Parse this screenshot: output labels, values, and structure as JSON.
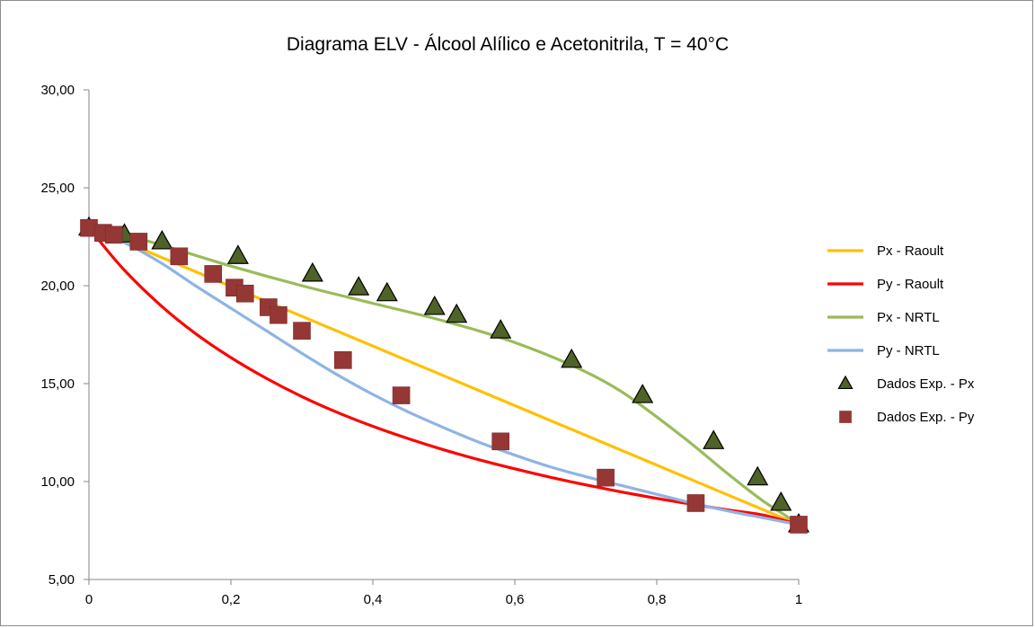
{
  "chart_data": {
    "type": "line",
    "title": "Diagrama ELV - Álcool Alílico e Acetonitrila, T = 40°C",
    "xlabel": "",
    "ylabel": "",
    "xlim": [
      0,
      1
    ],
    "ylim": [
      5,
      30
    ],
    "x_ticks": [
      0,
      0.2,
      0.4,
      0.6,
      0.8,
      1
    ],
    "x_tick_labels": [
      "0",
      "0,2",
      "0,4",
      "0,6",
      "0,8",
      "1"
    ],
    "y_ticks": [
      5,
      10,
      15,
      20,
      25,
      30
    ],
    "y_tick_labels": [
      "5,00",
      "10,00",
      "15,00",
      "20,00",
      "25,00",
      "30,00"
    ],
    "grid": false,
    "legend_position": "right",
    "series": [
      {
        "name": "Px - Raoult",
        "kind": "line",
        "color": "#ffc000",
        "x": [
          0,
          1
        ],
        "y": [
          23.0,
          7.8
        ]
      },
      {
        "name": "Py - Raoult",
        "kind": "line",
        "color": "#ff0000",
        "x": [
          0,
          0.02,
          0.05,
          0.1,
          0.15,
          0.2,
          0.25,
          0.3,
          0.35,
          0.4,
          0.45,
          0.5,
          0.55,
          0.6,
          0.65,
          0.7,
          0.75,
          0.8,
          0.85,
          0.9,
          0.95,
          1
        ],
        "y": [
          23.0,
          22.06,
          20.79,
          19.03,
          17.56,
          16.33,
          15.27,
          14.34,
          13.53,
          12.82,
          12.19,
          11.62,
          11.11,
          10.65,
          10.22,
          9.83,
          9.47,
          9.14,
          8.84,
          8.55,
          8.29,
          7.8
        ]
      },
      {
        "name": "Px - NRTL",
        "kind": "line",
        "color": "#9bbb59",
        "x": [
          0,
          0.05,
          0.1,
          0.2,
          0.3,
          0.4,
          0.5,
          0.6,
          0.7,
          0.75,
          0.8,
          0.85,
          0.9,
          0.95,
          0.98,
          1
        ],
        "y": [
          23.0,
          22.6,
          22.1,
          21.0,
          20.0,
          19.1,
          18.2,
          17.1,
          15.6,
          14.6,
          13.3,
          11.9,
          10.4,
          9.0,
          8.3,
          7.8
        ]
      },
      {
        "name": "Py - NRTL",
        "kind": "line",
        "color": "#8eb4e3",
        "x": [
          0,
          0.05,
          0.1,
          0.15,
          0.2,
          0.25,
          0.3,
          0.35,
          0.4,
          0.45,
          0.5,
          0.55,
          0.6,
          0.65,
          0.7,
          0.75,
          0.8,
          0.85,
          0.9,
          0.95,
          1
        ],
        "y": [
          23.0,
          22.2,
          21.2,
          20.0,
          18.85,
          17.7,
          16.55,
          15.45,
          14.45,
          13.55,
          12.75,
          12.0,
          11.35,
          10.75,
          10.25,
          9.8,
          9.35,
          8.9,
          8.5,
          8.15,
          7.8
        ]
      },
      {
        "name": "Dados Exp. - Px",
        "kind": "scatter",
        "marker": "triangle",
        "color": "#4f6228",
        "x": [
          0,
          0.05,
          0.103,
          0.21,
          0.315,
          0.38,
          0.42,
          0.487,
          0.518,
          0.58,
          0.68,
          0.78,
          0.88,
          0.942,
          0.975,
          1
        ],
        "y": [
          22.95,
          22.6,
          22.25,
          21.5,
          20.6,
          19.9,
          19.6,
          18.9,
          18.5,
          17.7,
          16.2,
          14.4,
          12.05,
          10.2,
          8.9,
          7.8
        ]
      },
      {
        "name": "Dados Exp. - Py",
        "kind": "scatter",
        "marker": "square",
        "color": "#953735",
        "x": [
          0,
          0.02,
          0.035,
          0.07,
          0.127,
          0.175,
          0.205,
          0.22,
          0.253,
          0.267,
          0.3,
          0.358,
          0.44,
          0.58,
          0.728,
          0.855,
          1
        ],
        "y": [
          22.95,
          22.7,
          22.6,
          22.25,
          21.5,
          20.6,
          19.9,
          19.6,
          18.9,
          18.5,
          17.7,
          16.2,
          14.4,
          12.05,
          10.2,
          8.9,
          7.8
        ]
      }
    ]
  }
}
